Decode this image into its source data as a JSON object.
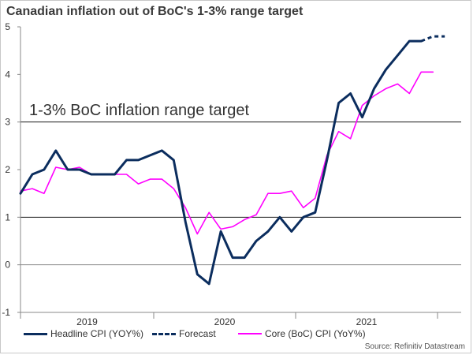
{
  "title": "Canadian inflation out of BoC's 1-3% range target",
  "source": "Source: Refinitiv Datastream",
  "chart_data": {
    "type": "line",
    "ylim": [
      -1,
      5
    ],
    "yticks": [
      -1,
      0,
      1,
      2,
      3,
      4,
      5
    ],
    "x": [
      "2018-12",
      "2019-01",
      "2019-02",
      "2019-03",
      "2019-04",
      "2019-05",
      "2019-06",
      "2019-07",
      "2019-08",
      "2019-09",
      "2019-10",
      "2019-11",
      "2019-12",
      "2020-01",
      "2020-02",
      "2020-03",
      "2020-04",
      "2020-05",
      "2020-06",
      "2020-07",
      "2020-08",
      "2020-09",
      "2020-10",
      "2020-11",
      "2020-12",
      "2021-01",
      "2021-02",
      "2021-03",
      "2021-04",
      "2021-05",
      "2021-06",
      "2021-07",
      "2021-08",
      "2021-09",
      "2021-10",
      "2021-11",
      "2021-12"
    ],
    "x_axis_labels": [
      "2019",
      "2020",
      "2021"
    ],
    "reference_lines": [
      1,
      3
    ],
    "annotation": "1-3% BoC inflation range target",
    "series": [
      {
        "name": "Headline CPI (YOY%)",
        "color": "#0b2d5e",
        "style": "solid",
        "x": [
          "2018-12",
          "2019-01",
          "2019-02",
          "2019-03",
          "2019-04",
          "2019-05",
          "2019-06",
          "2019-07",
          "2019-08",
          "2019-09",
          "2019-10",
          "2019-11",
          "2019-12",
          "2020-01",
          "2020-02",
          "2020-03",
          "2020-04",
          "2020-05",
          "2020-06",
          "2020-07",
          "2020-08",
          "2020-09",
          "2020-10",
          "2020-11",
          "2020-12",
          "2021-01",
          "2021-02",
          "2021-03",
          "2021-04",
          "2021-05",
          "2021-06",
          "2021-07",
          "2021-08",
          "2021-09",
          "2021-10"
        ],
        "values": [
          1.5,
          1.9,
          2.0,
          2.4,
          2.0,
          2.0,
          1.9,
          1.9,
          1.9,
          2.2,
          2.2,
          2.3,
          2.4,
          2.2,
          0.9,
          -0.2,
          -0.4,
          0.7,
          0.15,
          0.15,
          0.5,
          0.7,
          1.0,
          0.7,
          1.0,
          1.1,
          2.2,
          3.4,
          3.6,
          3.1,
          3.7,
          4.1,
          4.4,
          4.7,
          4.7
        ]
      },
      {
        "name": "Forecast",
        "color": "#0b2d5e",
        "style": "dashed",
        "x": [
          "2021-10",
          "2021-11",
          "2021-12"
        ],
        "values": [
          4.7,
          4.8,
          4.8
        ]
      },
      {
        "name": "Core (BoC) CPI (YoY%)",
        "color": "#ff00ff",
        "style": "solid",
        "x": [
          "2018-12",
          "2019-01",
          "2019-02",
          "2019-03",
          "2019-04",
          "2019-05",
          "2019-06",
          "2019-07",
          "2019-08",
          "2019-09",
          "2019-10",
          "2019-11",
          "2019-12",
          "2020-01",
          "2020-02",
          "2020-03",
          "2020-04",
          "2020-05",
          "2020-06",
          "2020-07",
          "2020-08",
          "2020-09",
          "2020-10",
          "2020-11",
          "2020-12",
          "2021-01",
          "2021-02",
          "2021-03",
          "2021-04",
          "2021-05",
          "2021-06",
          "2021-07",
          "2021-08",
          "2021-09",
          "2021-10",
          "2021-11"
        ],
        "values": [
          1.55,
          1.6,
          1.5,
          2.05,
          2.0,
          2.05,
          1.9,
          1.9,
          1.9,
          1.9,
          1.7,
          1.8,
          1.8,
          1.6,
          1.2,
          0.65,
          1.1,
          0.75,
          0.8,
          0.95,
          1.05,
          1.5,
          1.5,
          1.55,
          1.2,
          1.4,
          2.3,
          2.8,
          2.65,
          3.35,
          3.55,
          3.7,
          3.8,
          3.6,
          4.05,
          4.05
        ]
      }
    ]
  }
}
